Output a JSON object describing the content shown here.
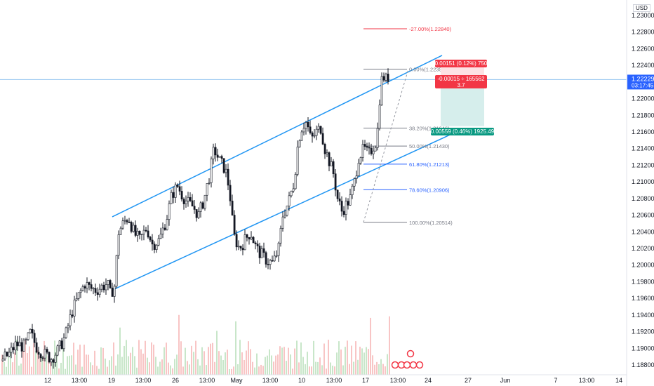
{
  "currency": "USD",
  "price_axis": {
    "labels": [
      "1.23000",
      "1.22800",
      "1.22600",
      "1.22400",
      "1.22000",
      "1.21800",
      "1.21600",
      "1.21400",
      "1.21200",
      "1.21000",
      "1.20800",
      "1.20600",
      "1.20400",
      "1.20200",
      "1.20000",
      "1.19800",
      "1.19600",
      "1.19400",
      "1.19200",
      "1.19000",
      "1.18800"
    ],
    "current_price": "1.22229",
    "countdown": "03:17:45"
  },
  "time_axis": {
    "labels": [
      "12",
      "13:00",
      "19",
      "13:00",
      "26",
      "13:00",
      "May",
      "13:00",
      "10",
      "13:00",
      "17",
      "13:00",
      "24",
      "27",
      "Jun",
      "7",
      "13:00",
      "14"
    ]
  },
  "fibonacci": [
    {
      "label": "-27.00%(1.22840)",
      "color": "#f23645",
      "price": 1.2284
    },
    {
      "label": "0.00%(1.22355)",
      "color": "#787b86",
      "price": 1.22355
    },
    {
      "label": "38.20%(1.21646)",
      "color": "#787b86",
      "price": 1.21646
    },
    {
      "label": "50.00%(1.21430)",
      "color": "#787b86",
      "price": 1.2143
    },
    {
      "label": "61.80%(1.21213)",
      "color": "#2962ff",
      "price": 1.21213
    },
    {
      "label": "78.60%(1.20906)",
      "color": "#2962ff",
      "price": 1.20906
    },
    {
      "label": "100.00%(1.20514)",
      "color": "#787b86",
      "price": 1.20514
    }
  ],
  "position_tool": {
    "stop_label": "0.00151 (0.12%) 750",
    "entry_label_line1": "-0.00015 ÷ 165562",
    "entry_label_line2": "3.7",
    "target_label": "0.00559 (0.46%) 1925.49",
    "stop_color": "#f23645",
    "target_color": "#089981",
    "target_fill": "#d6eeec"
  },
  "colors": {
    "channel": "#2196f3",
    "candle": "#131722",
    "current_line": "#90c3f0",
    "volume_up": "#c8e6c9",
    "volume_down": "#f8c5c5"
  },
  "chart_data": {
    "type": "candlestick",
    "symbol_currency": "USD",
    "ylim": [
      1.1875,
      1.2314
    ],
    "current_price": 1.22229,
    "close_path": [
      [
        0,
        1.1885
      ],
      [
        12,
        1.1893
      ],
      [
        22,
        1.1905
      ],
      [
        34,
        1.1902
      ],
      [
        42,
        1.1918
      ],
      [
        52,
        1.19
      ],
      [
        62,
        1.1893
      ],
      [
        72,
        1.1888
      ],
      [
        82,
        1.1898
      ],
      [
        92,
        1.1915
      ],
      [
        102,
        1.1945
      ],
      [
        112,
        1.1965
      ],
      [
        120,
        1.1978
      ],
      [
        128,
        1.1972
      ],
      [
        136,
        1.197
      ],
      [
        146,
        1.1975
      ],
      [
        152,
        1.1978
      ],
      [
        156,
        1.1965
      ],
      [
        162,
        1.1975
      ],
      [
        168,
        1.204
      ],
      [
        176,
        1.2052
      ],
      [
        182,
        1.2058
      ],
      [
        190,
        1.2038
      ],
      [
        198,
        1.203
      ],
      [
        208,
        1.2045
      ],
      [
        216,
        1.2025
      ],
      [
        226,
        1.203
      ],
      [
        236,
        1.2055
      ],
      [
        244,
        1.2085
      ],
      [
        252,
        1.2095
      ],
      [
        258,
        1.2085
      ],
      [
        266,
        1.2075
      ],
      [
        274,
        1.207
      ],
      [
        282,
        1.206
      ],
      [
        290,
        1.208
      ],
      [
        298,
        1.211
      ],
      [
        304,
        1.214
      ],
      [
        312,
        1.2125
      ],
      [
        320,
        1.2115
      ],
      [
        326,
        1.209
      ],
      [
        332,
        1.2035
      ],
      [
        340,
        1.202
      ],
      [
        348,
        1.203
      ],
      [
        356,
        1.204
      ],
      [
        364,
        1.202
      ],
      [
        372,
        1.2012
      ],
      [
        380,
        1.2005
      ],
      [
        388,
        1.2002
      ],
      [
        396,
        1.202
      ],
      [
        402,
        1.206
      ],
      [
        410,
        1.2075
      ],
      [
        418,
        1.21
      ],
      [
        424,
        1.215
      ],
      [
        430,
        1.2168
      ],
      [
        436,
        1.2172
      ],
      [
        442,
        1.215
      ],
      [
        450,
        1.216
      ],
      [
        456,
        1.2165
      ],
      [
        462,
        1.214
      ],
      [
        468,
        1.2125
      ],
      [
        474,
        1.211
      ],
      [
        480,
        1.208
      ],
      [
        486,
        1.2065
      ],
      [
        492,
        1.2072
      ],
      [
        498,
        1.208
      ],
      [
        504,
        1.21
      ],
      [
        510,
        1.213
      ],
      [
        518,
        1.214
      ],
      [
        524,
        1.2132
      ],
      [
        530,
        1.2142
      ],
      [
        536,
        1.215
      ],
      [
        540,
        1.22
      ],
      [
        544,
        1.223
      ],
      [
        548,
        1.2222
      ],
      [
        552,
        1.2226
      ]
    ],
    "channel": {
      "upper": [
        [
          160,
          1.2058
        ],
        [
          630,
          1.2252
        ]
      ],
      "lower": [
        [
          160,
          1.197
        ],
        [
          645,
          1.2158
        ]
      ]
    },
    "fib_levels": [
      -0.27,
      0,
      0.382,
      0.5,
      0.618,
      0.786,
      1
    ],
    "fib_prices": [
      1.2284,
      1.22355,
      1.21646,
      1.2143,
      1.21213,
      1.20906,
      1.20514
    ],
    "position": {
      "entry": 1.22229,
      "stop": 1.2238,
      "target": 1.2167
    }
  }
}
